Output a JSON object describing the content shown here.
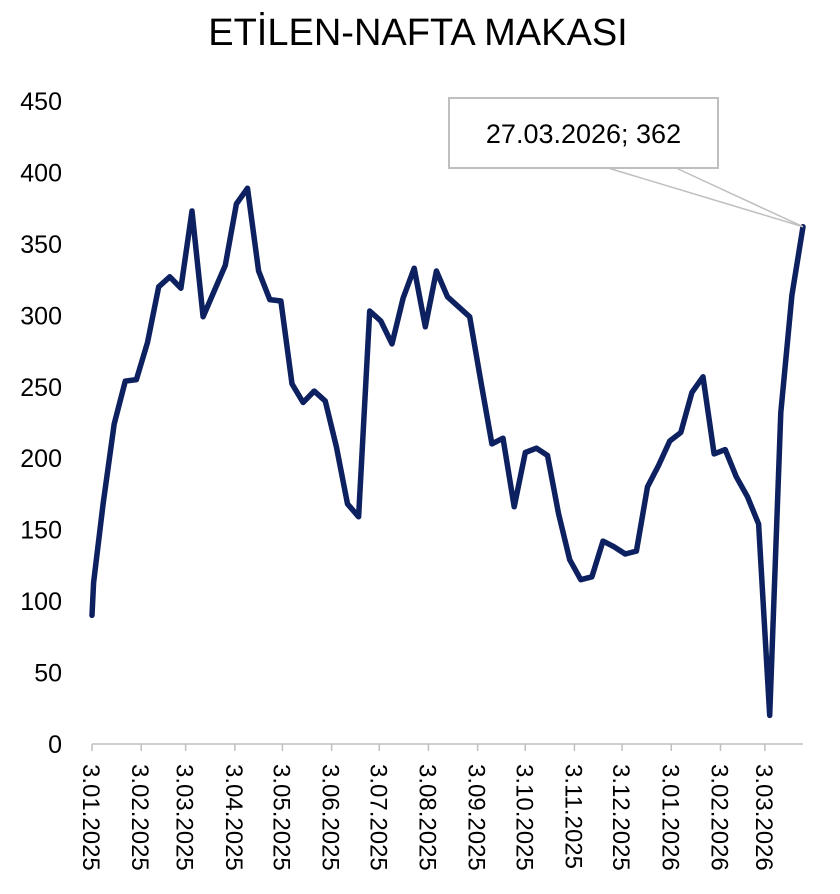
{
  "chart_data": {
    "type": "line",
    "title": "ETİLEN-NAFTA MAKASI",
    "xlabel": "",
    "ylabel": "",
    "ylim": [
      0,
      450
    ],
    "yticks": [
      0,
      50,
      100,
      150,
      200,
      250,
      300,
      350,
      400,
      450
    ],
    "xtick_labels": [
      "3.01.2025",
      "3.02.2025",
      "3.03.2025",
      "3.04.2025",
      "3.05.2025",
      "3.06.2025",
      "3.07.2025",
      "3.08.2025",
      "3.09.2025",
      "3.10.2025",
      "3.11.2025",
      "3.12.2025",
      "3.01.2026",
      "3.02.2026",
      "3.03.2026"
    ],
    "grid": false,
    "legend": "none",
    "line_color": "#0d2160",
    "annotation": {
      "text": "27.03.2026; 362",
      "x": "27.03.2026",
      "y": 362
    },
    "series": [
      {
        "values": [
          [
            "2025-01-03",
            90
          ],
          [
            "2025-01-04",
            113
          ],
          [
            "2025-01-10",
            168
          ],
          [
            "2025-01-17",
            224
          ],
          [
            "2025-01-24",
            254
          ],
          [
            "2025-01-31",
            255
          ],
          [
            "2025-02-07",
            281
          ],
          [
            "2025-02-14",
            320
          ],
          [
            "2025-02-21",
            327
          ],
          [
            "2025-02-28",
            319
          ],
          [
            "2025-03-07",
            373
          ],
          [
            "2025-03-14",
            299
          ],
          [
            "2025-03-21",
            317
          ],
          [
            "2025-03-28",
            335
          ],
          [
            "2025-04-04",
            378
          ],
          [
            "2025-04-11",
            389
          ],
          [
            "2025-04-18",
            331
          ],
          [
            "2025-04-25",
            311
          ],
          [
            "2025-05-02",
            310
          ],
          [
            "2025-05-09",
            252
          ],
          [
            "2025-05-16",
            239
          ],
          [
            "2025-05-23",
            247
          ],
          [
            "2025-05-30",
            240
          ],
          [
            "2025-06-06",
            208
          ],
          [
            "2025-06-13",
            168
          ],
          [
            "2025-06-20",
            159
          ],
          [
            "2025-06-27",
            303
          ],
          [
            "2025-07-04",
            296
          ],
          [
            "2025-07-11",
            280
          ],
          [
            "2025-07-18",
            312
          ],
          [
            "2025-07-25",
            333
          ],
          [
            "2025-08-01",
            292
          ],
          [
            "2025-08-08",
            331
          ],
          [
            "2025-08-15",
            313
          ],
          [
            "2025-08-22",
            306
          ],
          [
            "2025-08-29",
            299
          ],
          [
            "2025-09-05",
            254
          ],
          [
            "2025-09-12",
            210
          ],
          [
            "2025-09-19",
            214
          ],
          [
            "2025-09-26",
            166
          ],
          [
            "2025-10-03",
            204
          ],
          [
            "2025-10-10",
            207
          ],
          [
            "2025-10-17",
            202
          ],
          [
            "2025-10-24",
            161
          ],
          [
            "2025-10-31",
            129
          ],
          [
            "2025-11-07",
            115
          ],
          [
            "2025-11-14",
            117
          ],
          [
            "2025-11-21",
            142
          ],
          [
            "2025-11-28",
            138
          ],
          [
            "2025-12-05",
            133
          ],
          [
            "2025-12-12",
            135
          ],
          [
            "2025-12-19",
            180
          ],
          [
            "2025-12-26",
            195
          ],
          [
            "2026-01-02",
            212
          ],
          [
            "2026-01-09",
            218
          ],
          [
            "2026-01-16",
            246
          ],
          [
            "2026-01-23",
            257
          ],
          [
            "2026-01-30",
            203
          ],
          [
            "2026-02-06",
            206
          ],
          [
            "2026-02-13",
            187
          ],
          [
            "2026-02-20",
            173
          ],
          [
            "2026-02-27",
            154
          ],
          [
            "2026-03-06",
            20
          ],
          [
            "2026-03-13",
            232
          ],
          [
            "2026-03-20",
            314
          ],
          [
            "2026-03-27",
            362
          ]
        ]
      }
    ]
  }
}
